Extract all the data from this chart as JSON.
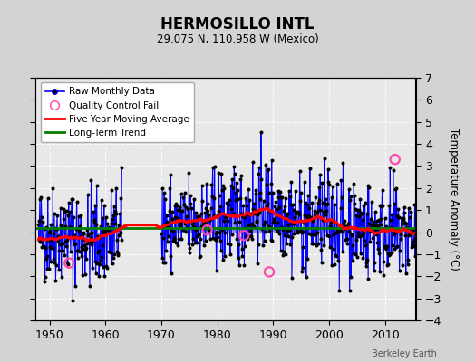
{
  "title": "HERMOSILLO INTL",
  "subtitle": "29.075 N, 110.958 W (Mexico)",
  "ylabel": "Temperature Anomaly (°C)",
  "credit": "Berkeley Earth",
  "xlim": [
    1947.5,
    2015.5
  ],
  "ylim": [
    -4,
    7
  ],
  "yticks": [
    -4,
    -3,
    -2,
    -1,
    0,
    1,
    2,
    3,
    4,
    5,
    6,
    7
  ],
  "xticks": [
    1950,
    1960,
    1970,
    1980,
    1990,
    2000,
    2010
  ],
  "bg_color": "#d3d3d3",
  "plot_bg_color": "#e8e8e8",
  "long_term_trend_y": 0.18,
  "seed": 42
}
